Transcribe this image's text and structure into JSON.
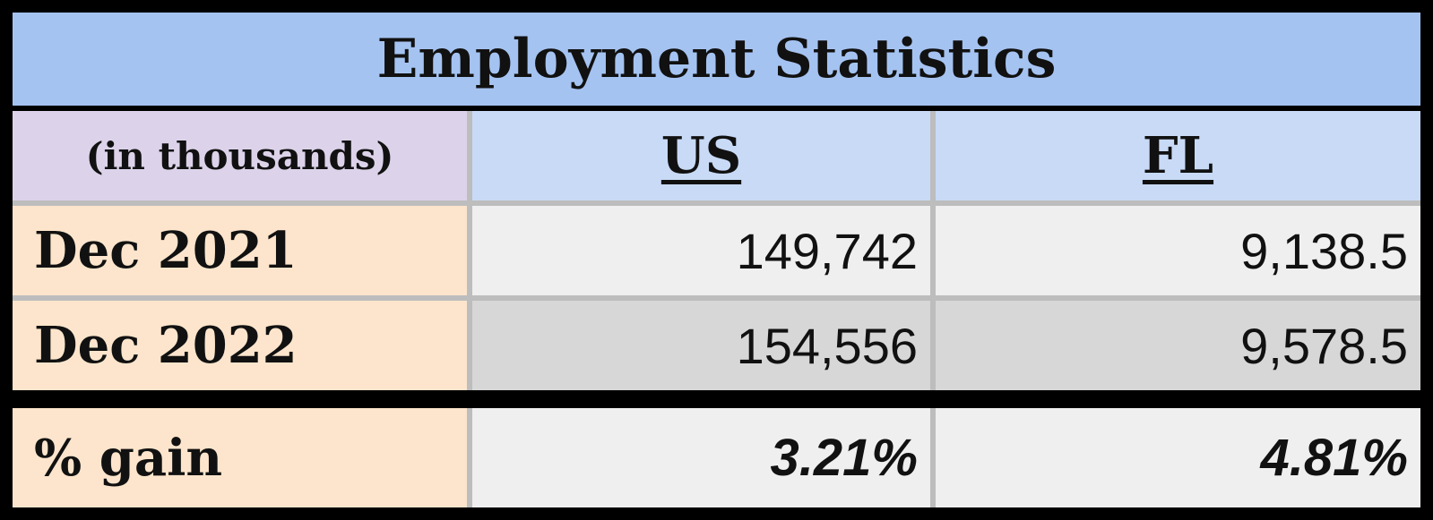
{
  "chart_data": {
    "type": "table",
    "title": "Employment Statistics",
    "units_label": "(in thousands)",
    "columns": [
      "US",
      "FL"
    ],
    "rows": [
      {
        "label": "Dec 2021",
        "values": [
          "149,742",
          "9,138.5"
        ]
      },
      {
        "label": "Dec 2022",
        "values": [
          "154,556",
          "9,578.5"
        ]
      }
    ],
    "summary_row": {
      "label": "% gain",
      "values": [
        "3.21%",
        "4.81%"
      ]
    }
  },
  "colors": {
    "title_bg": "#a5c3f1",
    "units_bg": "#dcd3ea",
    "column_header_bg": "#c8daf6",
    "row_label_bg": "#fce5cc",
    "value_light_bg": "#efefef",
    "value_dark_bg": "#d7d7d7",
    "border": "#000000"
  }
}
